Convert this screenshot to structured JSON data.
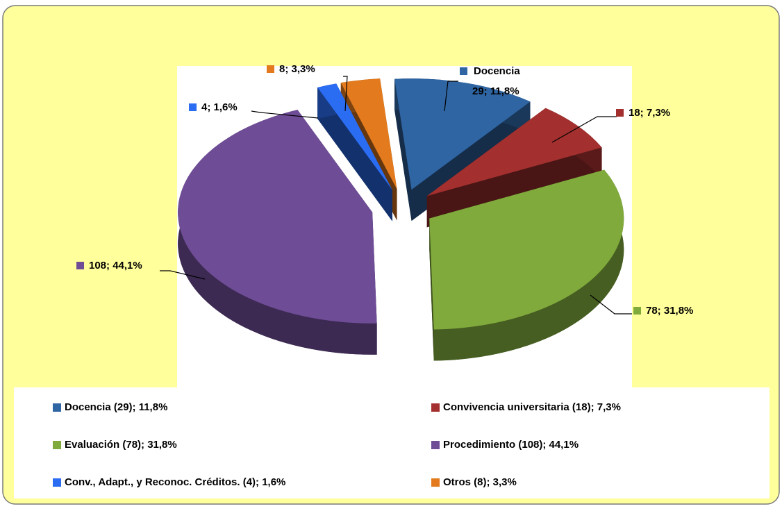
{
  "chart_data": {
    "type": "pie",
    "annotation": "Docencia",
    "categories": [
      "Docencia (29); 11,8%",
      "Convivencia universitaria (18); 7,3%",
      "Evaluación (78); 31,8%",
      "Procedimiento (108); 44,1%",
      "Conv., Adapt., y Reconoc. Créditos. (4); 1,6%",
      "Otros (8); 3,3%"
    ],
    "values": [
      29,
      18,
      78,
      108,
      4,
      8
    ],
    "value_labels": [
      "29; 11,8%",
      "18; 7,3%",
      "78; 31,8%",
      "108; 44,1%",
      "4; 1,6%",
      "8; 3,3%"
    ],
    "colors": [
      "#2f65a3",
      "#a3302e",
      "#80aa3c",
      "#6e4c96",
      "#2b6df2",
      "#e37b1e"
    ],
    "legend": "bottom"
  }
}
